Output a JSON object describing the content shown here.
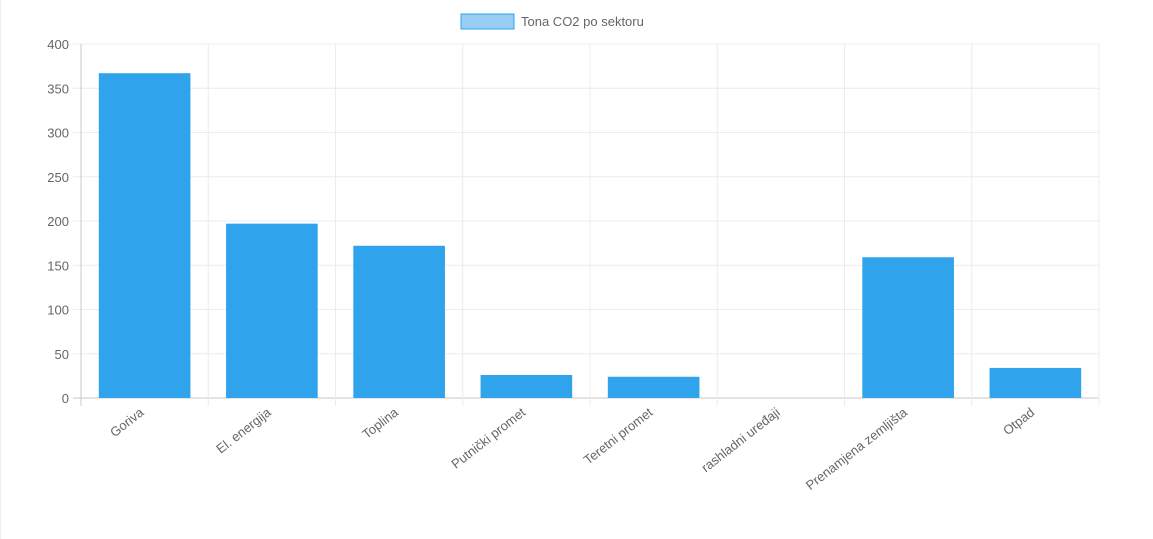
{
  "chart_data": {
    "type": "bar",
    "categories": [
      "Goriva",
      "El. energija",
      "Toplina",
      "Putnički promet",
      "Teretni promet",
      "rashladni uređaji",
      "Prenamjena zemljišta",
      "Otpad"
    ],
    "series": [
      {
        "name": "Tona CO2 po sektoru",
        "values": [
          367,
          197,
          172,
          26,
          24,
          0,
          159,
          34
        ],
        "color": "#2fa3ec",
        "legend_color": "#99cdf3"
      }
    ],
    "ylim": [
      0,
      400
    ],
    "yticks": [
      "0",
      "50",
      "100",
      "150",
      "200",
      "250",
      "300",
      "350",
      "400"
    ],
    "grid": true,
    "legend_position": "top-center"
  }
}
